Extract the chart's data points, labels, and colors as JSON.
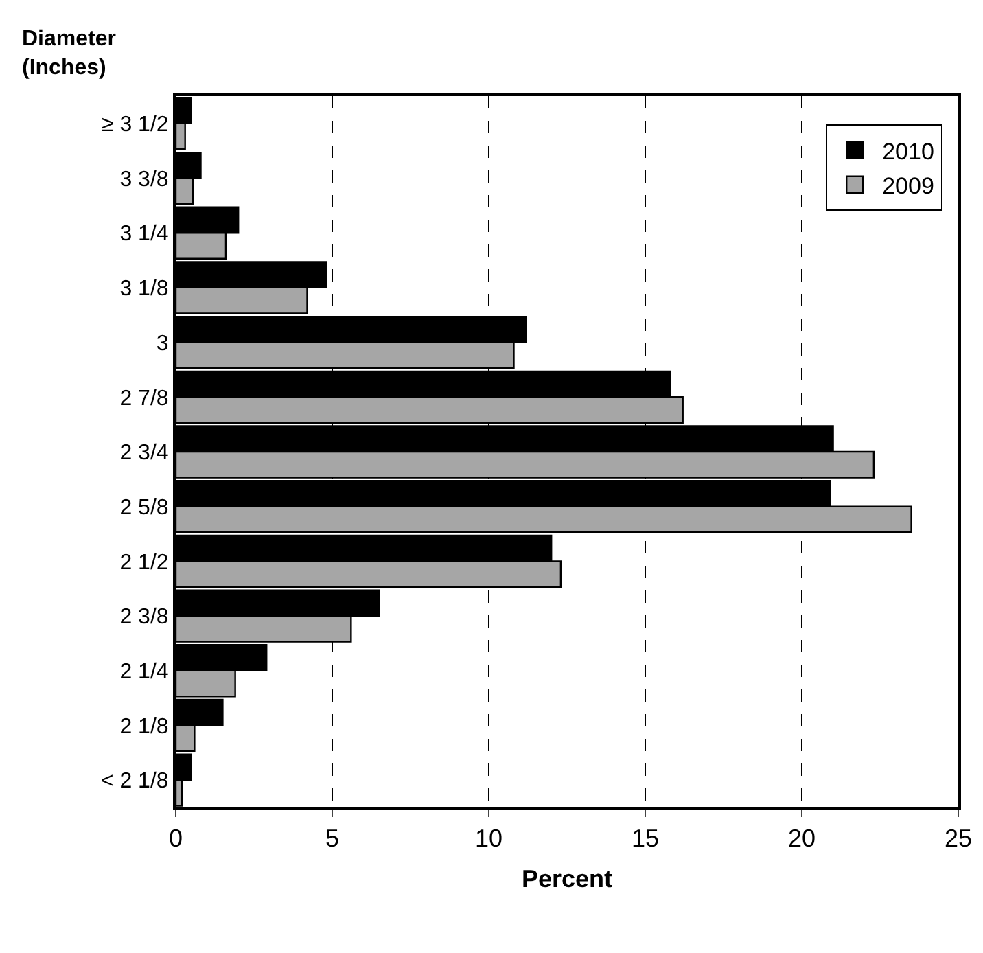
{
  "chart_data": {
    "type": "bar",
    "orientation": "horizontal",
    "xlabel": "Percent",
    "ylabel": "Diameter\n(Inches)",
    "categories": [
      "≥ 3 1/2",
      "3 3/8",
      "3 1/4",
      "3 1/8",
      "3",
      "2 7/8",
      "2 3/4",
      "2 5/8",
      "2 1/2",
      "2 3/8",
      "2 1/4",
      "2 1/8",
      "< 2 1/8"
    ],
    "series": [
      {
        "name": "2010",
        "color": "#000000",
        "values": [
          0.5,
          0.8,
          2.0,
          4.8,
          11.2,
          15.8,
          21.0,
          20.9,
          12.0,
          6.5,
          2.9,
          1.5,
          0.5
        ]
      },
      {
        "name": "2009",
        "color": "#a6a6a6",
        "values": [
          0.3,
          0.55,
          1.6,
          4.2,
          10.8,
          16.2,
          22.3,
          23.5,
          12.3,
          5.6,
          1.9,
          0.6,
          0.2
        ]
      }
    ],
    "xlim": [
      0,
      25
    ],
    "xticks": [
      0,
      5,
      10,
      15,
      20,
      25
    ],
    "grid": "x",
    "legend": "top right"
  }
}
